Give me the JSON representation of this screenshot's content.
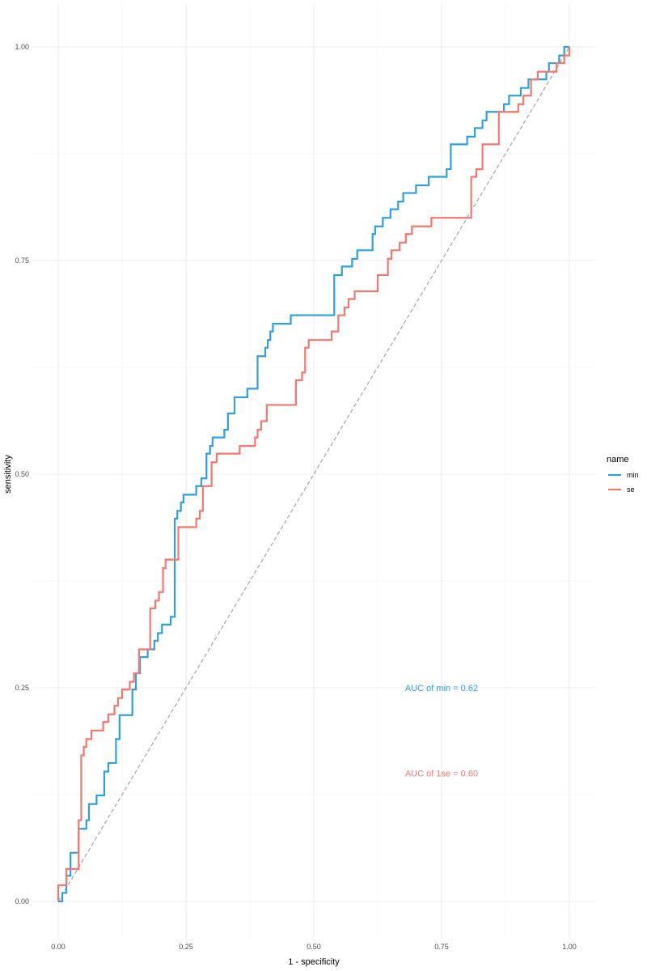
{
  "chart_data": {
    "type": "line",
    "title": "",
    "xlabel": "1 - specificity",
    "ylabel": "sensitivity",
    "xlim": [
      0,
      1
    ],
    "ylim": [
      0,
      1
    ],
    "x_ticks": [
      "0.00",
      "0.25",
      "0.50",
      "0.75",
      "1.00"
    ],
    "y_ticks": [
      "0.00",
      "0.25",
      "0.50",
      "0.75",
      "1.00"
    ],
    "grid": true,
    "legend": {
      "title": "name",
      "position": "right",
      "entries": [
        "min",
        "se"
      ]
    },
    "series": [
      {
        "name": "min",
        "color": "#2E9FDF",
        "style": "step",
        "points": [
          [
            0.0,
            0.0
          ],
          [
            0.008,
            0.0
          ],
          [
            0.008,
            0.01
          ],
          [
            0.016,
            0.01
          ],
          [
            0.016,
            0.03
          ],
          [
            0.024,
            0.03
          ],
          [
            0.024,
            0.057
          ],
          [
            0.04,
            0.057
          ],
          [
            0.04,
            0.085
          ],
          [
            0.055,
            0.085
          ],
          [
            0.055,
            0.095
          ],
          [
            0.06,
            0.095
          ],
          [
            0.06,
            0.114
          ],
          [
            0.075,
            0.114
          ],
          [
            0.075,
            0.124
          ],
          [
            0.09,
            0.124
          ],
          [
            0.09,
            0.152
          ],
          [
            0.098,
            0.152
          ],
          [
            0.098,
            0.162
          ],
          [
            0.113,
            0.162
          ],
          [
            0.113,
            0.19
          ],
          [
            0.12,
            0.19
          ],
          [
            0.12,
            0.218
          ],
          [
            0.145,
            0.218
          ],
          [
            0.145,
            0.248
          ],
          [
            0.152,
            0.248
          ],
          [
            0.152,
            0.267
          ],
          [
            0.16,
            0.267
          ],
          [
            0.16,
            0.286
          ],
          [
            0.175,
            0.286
          ],
          [
            0.175,
            0.295
          ],
          [
            0.188,
            0.295
          ],
          [
            0.188,
            0.305
          ],
          [
            0.195,
            0.305
          ],
          [
            0.195,
            0.314
          ],
          [
            0.203,
            0.314
          ],
          [
            0.203,
            0.324
          ],
          [
            0.22,
            0.324
          ],
          [
            0.22,
            0.333
          ],
          [
            0.228,
            0.333
          ],
          [
            0.228,
            0.448
          ],
          [
            0.233,
            0.448
          ],
          [
            0.233,
            0.457
          ],
          [
            0.24,
            0.457
          ],
          [
            0.24,
            0.467
          ],
          [
            0.245,
            0.467
          ],
          [
            0.245,
            0.476
          ],
          [
            0.27,
            0.476
          ],
          [
            0.27,
            0.486
          ],
          [
            0.28,
            0.486
          ],
          [
            0.28,
            0.495
          ],
          [
            0.29,
            0.495
          ],
          [
            0.29,
            0.524
          ],
          [
            0.297,
            0.524
          ],
          [
            0.297,
            0.533
          ],
          [
            0.302,
            0.533
          ],
          [
            0.302,
            0.543
          ],
          [
            0.325,
            0.543
          ],
          [
            0.325,
            0.552
          ],
          [
            0.332,
            0.552
          ],
          [
            0.332,
            0.571
          ],
          [
            0.345,
            0.571
          ],
          [
            0.345,
            0.59
          ],
          [
            0.37,
            0.59
          ],
          [
            0.37,
            0.6
          ],
          [
            0.39,
            0.6
          ],
          [
            0.39,
            0.638
          ],
          [
            0.405,
            0.638
          ],
          [
            0.405,
            0.648
          ],
          [
            0.41,
            0.648
          ],
          [
            0.41,
            0.657
          ],
          [
            0.415,
            0.657
          ],
          [
            0.415,
            0.667
          ],
          [
            0.42,
            0.667
          ],
          [
            0.42,
            0.676
          ],
          [
            0.455,
            0.676
          ],
          [
            0.455,
            0.686
          ],
          [
            0.54,
            0.686
          ],
          [
            0.54,
            0.733
          ],
          [
            0.555,
            0.733
          ],
          [
            0.555,
            0.743
          ],
          [
            0.575,
            0.743
          ],
          [
            0.575,
            0.752
          ],
          [
            0.585,
            0.752
          ],
          [
            0.585,
            0.762
          ],
          [
            0.615,
            0.762
          ],
          [
            0.615,
            0.781
          ],
          [
            0.62,
            0.781
          ],
          [
            0.62,
            0.79
          ],
          [
            0.635,
            0.79
          ],
          [
            0.635,
            0.8
          ],
          [
            0.65,
            0.8
          ],
          [
            0.65,
            0.81
          ],
          [
            0.665,
            0.81
          ],
          [
            0.665,
            0.819
          ],
          [
            0.675,
            0.819
          ],
          [
            0.675,
            0.829
          ],
          [
            0.7,
            0.829
          ],
          [
            0.7,
            0.838
          ],
          [
            0.725,
            0.838
          ],
          [
            0.725,
            0.848
          ],
          [
            0.76,
            0.848
          ],
          [
            0.76,
            0.857
          ],
          [
            0.768,
            0.857
          ],
          [
            0.768,
            0.886
          ],
          [
            0.8,
            0.886
          ],
          [
            0.8,
            0.895
          ],
          [
            0.815,
            0.895
          ],
          [
            0.815,
            0.905
          ],
          [
            0.83,
            0.905
          ],
          [
            0.83,
            0.914
          ],
          [
            0.838,
            0.914
          ],
          [
            0.838,
            0.924
          ],
          [
            0.872,
            0.924
          ],
          [
            0.872,
            0.933
          ],
          [
            0.882,
            0.933
          ],
          [
            0.882,
            0.943
          ],
          [
            0.905,
            0.943
          ],
          [
            0.905,
            0.952
          ],
          [
            0.92,
            0.952
          ],
          [
            0.92,
            0.962
          ],
          [
            0.955,
            0.962
          ],
          [
            0.955,
            0.971
          ],
          [
            0.96,
            0.971
          ],
          [
            0.96,
            0.981
          ],
          [
            0.98,
            0.981
          ],
          [
            0.98,
            0.99
          ],
          [
            0.99,
            0.99
          ],
          [
            0.99,
            1.0
          ],
          [
            1.0,
            1.0
          ]
        ]
      },
      {
        "name": "se",
        "color": "#F8766D",
        "style": "step",
        "points": [
          [
            0.0,
            0.0
          ],
          [
            0.0,
            0.019
          ],
          [
            0.016,
            0.019
          ],
          [
            0.016,
            0.038
          ],
          [
            0.04,
            0.038
          ],
          [
            0.04,
            0.095
          ],
          [
            0.045,
            0.095
          ],
          [
            0.045,
            0.171
          ],
          [
            0.05,
            0.171
          ],
          [
            0.05,
            0.181
          ],
          [
            0.055,
            0.181
          ],
          [
            0.055,
            0.19
          ],
          [
            0.065,
            0.19
          ],
          [
            0.065,
            0.2
          ],
          [
            0.088,
            0.2
          ],
          [
            0.088,
            0.21
          ],
          [
            0.098,
            0.21
          ],
          [
            0.098,
            0.219
          ],
          [
            0.11,
            0.219
          ],
          [
            0.11,
            0.229
          ],
          [
            0.117,
            0.229
          ],
          [
            0.117,
            0.238
          ],
          [
            0.125,
            0.238
          ],
          [
            0.125,
            0.248
          ],
          [
            0.14,
            0.248
          ],
          [
            0.14,
            0.257
          ],
          [
            0.148,
            0.257
          ],
          [
            0.148,
            0.267
          ],
          [
            0.158,
            0.267
          ],
          [
            0.158,
            0.295
          ],
          [
            0.18,
            0.295
          ],
          [
            0.18,
            0.343
          ],
          [
            0.19,
            0.343
          ],
          [
            0.19,
            0.352
          ],
          [
            0.197,
            0.352
          ],
          [
            0.197,
            0.362
          ],
          [
            0.205,
            0.362
          ],
          [
            0.205,
            0.39
          ],
          [
            0.21,
            0.39
          ],
          [
            0.21,
            0.4
          ],
          [
            0.235,
            0.4
          ],
          [
            0.235,
            0.438
          ],
          [
            0.27,
            0.438
          ],
          [
            0.27,
            0.448
          ],
          [
            0.277,
            0.448
          ],
          [
            0.277,
            0.457
          ],
          [
            0.283,
            0.457
          ],
          [
            0.283,
            0.486
          ],
          [
            0.3,
            0.486
          ],
          [
            0.3,
            0.514
          ],
          [
            0.31,
            0.514
          ],
          [
            0.31,
            0.524
          ],
          [
            0.355,
            0.524
          ],
          [
            0.355,
            0.533
          ],
          [
            0.385,
            0.533
          ],
          [
            0.385,
            0.543
          ],
          [
            0.39,
            0.543
          ],
          [
            0.39,
            0.552
          ],
          [
            0.397,
            0.552
          ],
          [
            0.397,
            0.562
          ],
          [
            0.408,
            0.562
          ],
          [
            0.408,
            0.581
          ],
          [
            0.465,
            0.581
          ],
          [
            0.465,
            0.61
          ],
          [
            0.477,
            0.61
          ],
          [
            0.477,
            0.619
          ],
          [
            0.483,
            0.619
          ],
          [
            0.483,
            0.648
          ],
          [
            0.49,
            0.648
          ],
          [
            0.49,
            0.657
          ],
          [
            0.535,
            0.657
          ],
          [
            0.535,
            0.667
          ],
          [
            0.548,
            0.667
          ],
          [
            0.548,
            0.686
          ],
          [
            0.56,
            0.686
          ],
          [
            0.56,
            0.695
          ],
          [
            0.568,
            0.695
          ],
          [
            0.568,
            0.705
          ],
          [
            0.58,
            0.705
          ],
          [
            0.58,
            0.714
          ],
          [
            0.625,
            0.714
          ],
          [
            0.625,
            0.733
          ],
          [
            0.645,
            0.733
          ],
          [
            0.645,
            0.752
          ],
          [
            0.652,
            0.752
          ],
          [
            0.652,
            0.762
          ],
          [
            0.668,
            0.762
          ],
          [
            0.668,
            0.771
          ],
          [
            0.68,
            0.771
          ],
          [
            0.68,
            0.781
          ],
          [
            0.692,
            0.781
          ],
          [
            0.692,
            0.79
          ],
          [
            0.73,
            0.79
          ],
          [
            0.73,
            0.8
          ],
          [
            0.808,
            0.8
          ],
          [
            0.808,
            0.848
          ],
          [
            0.818,
            0.848
          ],
          [
            0.818,
            0.857
          ],
          [
            0.83,
            0.857
          ],
          [
            0.83,
            0.886
          ],
          [
            0.862,
            0.886
          ],
          [
            0.862,
            0.924
          ],
          [
            0.9,
            0.924
          ],
          [
            0.9,
            0.933
          ],
          [
            0.91,
            0.933
          ],
          [
            0.91,
            0.943
          ],
          [
            0.925,
            0.943
          ],
          [
            0.925,
            0.962
          ],
          [
            0.938,
            0.962
          ],
          [
            0.938,
            0.971
          ],
          [
            0.975,
            0.971
          ],
          [
            0.975,
            0.981
          ],
          [
            0.99,
            0.981
          ],
          [
            0.99,
            0.99
          ],
          [
            1.0,
            0.99
          ],
          [
            1.0,
            1.0
          ]
        ]
      }
    ],
    "reference_line": {
      "from": [
        0,
        0
      ],
      "to": [
        1,
        1
      ],
      "color": "#A6A6A6",
      "style": "dashed"
    },
    "annotations": [
      {
        "text": "AUC of min =  0.62",
        "x": 0.75,
        "y": 0.25,
        "color": "#2E9FDF"
      },
      {
        "text": "AUC of 1se =  0.60",
        "x": 0.75,
        "y": 0.15,
        "color": "#F8766D"
      }
    ]
  }
}
